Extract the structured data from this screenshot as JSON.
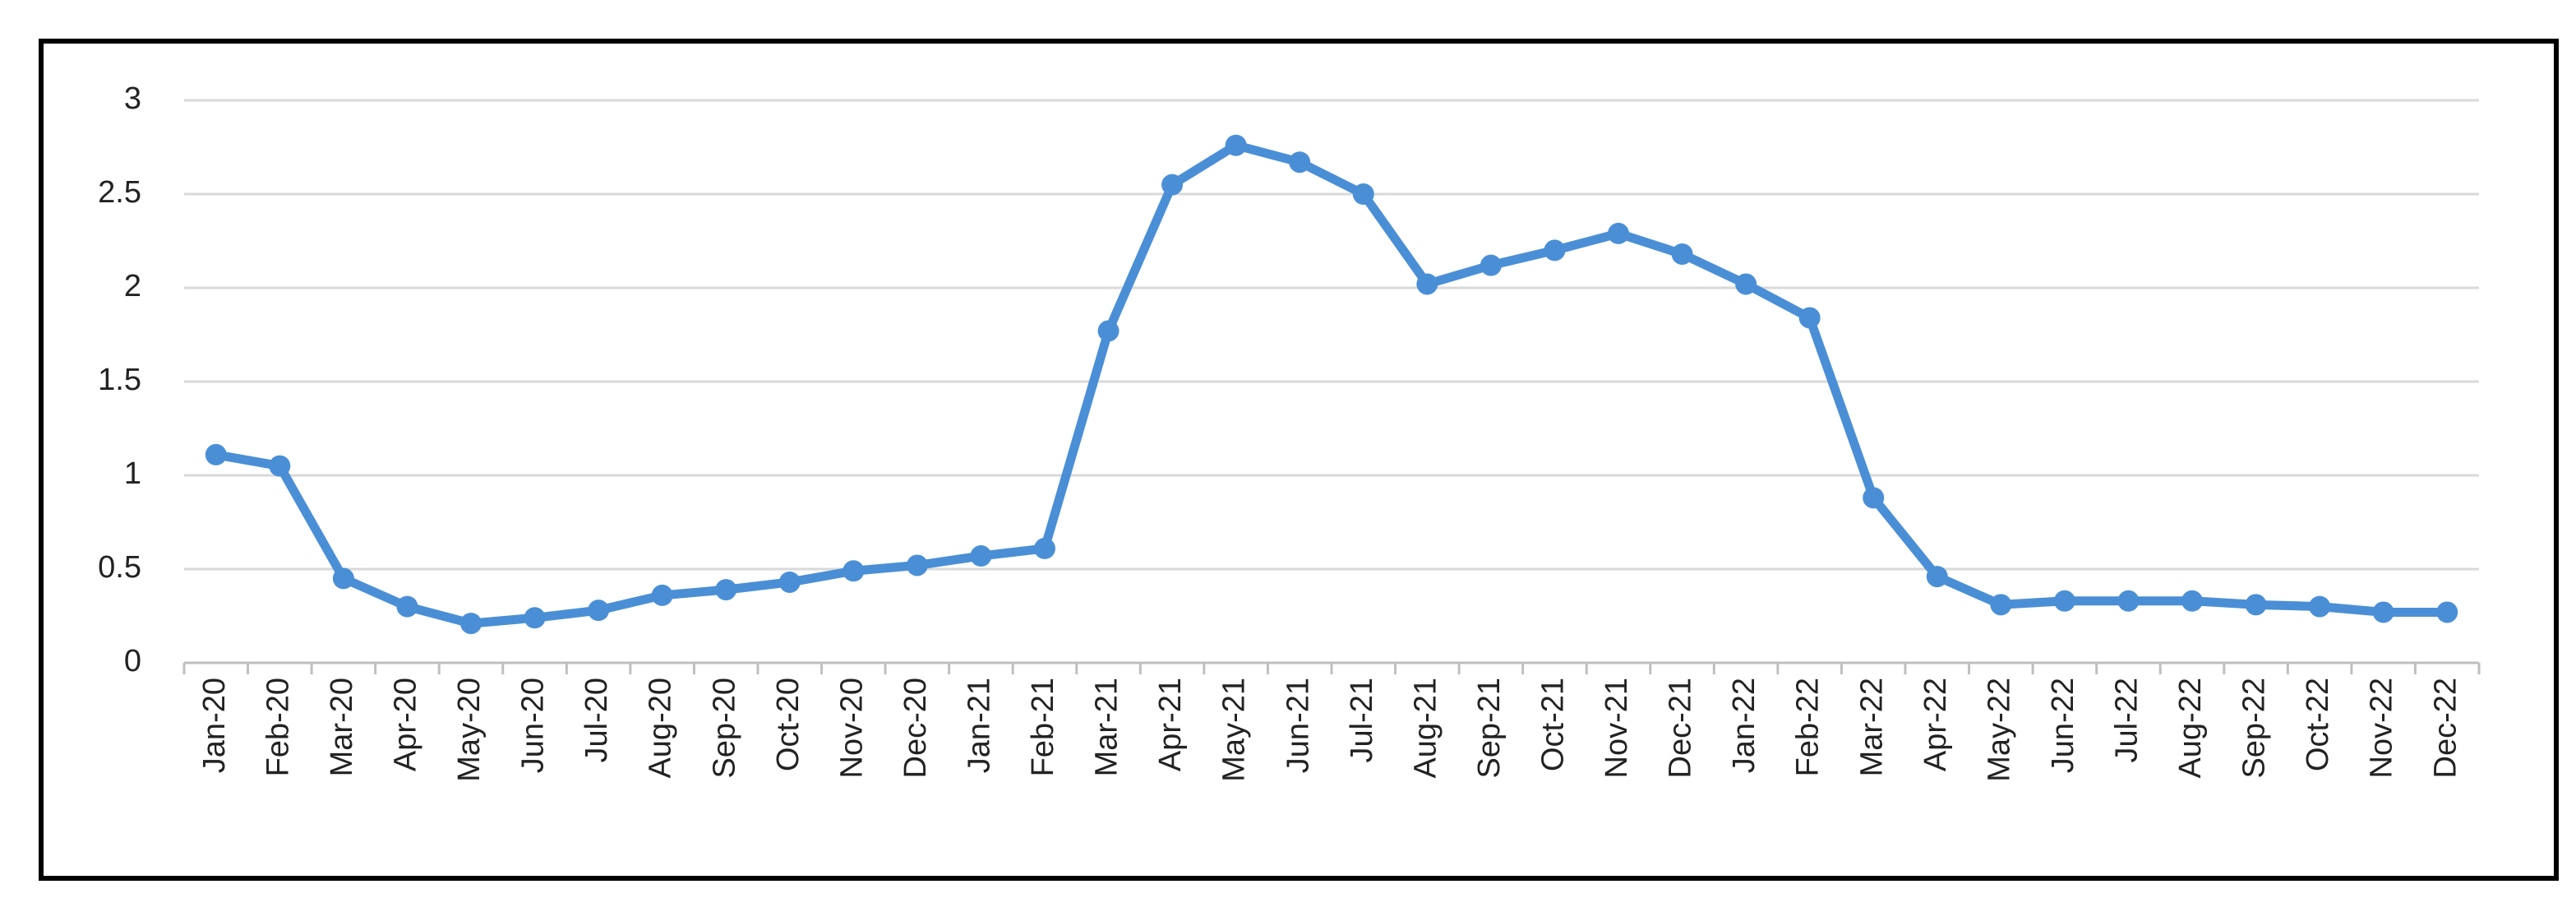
{
  "chart_data": {
    "type": "line",
    "categories": [
      "Jan-20",
      "Feb-20",
      "Mar-20",
      "Apr-20",
      "May-20",
      "Jun-20",
      "Jul-20",
      "Aug-20",
      "Sep-20",
      "Oct-20",
      "Nov-20",
      "Dec-20",
      "Jan-21",
      "Feb-21",
      "Mar-21",
      "Apr-21",
      "May-21",
      "Jun-21",
      "Jul-21",
      "Aug-21",
      "Sep-21",
      "Oct-21",
      "Nov-21",
      "Dec-21",
      "Jan-22",
      "Feb-22",
      "Mar-22",
      "Apr-22",
      "May-22",
      "Jun-22",
      "Jul-22",
      "Aug-22",
      "Sep-22",
      "Oct-22",
      "Nov-22",
      "Dec-22"
    ],
    "values": [
      1.11,
      1.05,
      0.45,
      0.3,
      0.21,
      0.24,
      0.28,
      0.36,
      0.39,
      0.43,
      0.49,
      0.52,
      0.57,
      0.61,
      1.77,
      2.55,
      2.76,
      2.67,
      2.5,
      2.02,
      2.12,
      2.2,
      2.29,
      2.18,
      2.02,
      1.84,
      0.88,
      0.46,
      0.31,
      0.33,
      0.33,
      0.33,
      0.31,
      0.3,
      0.27,
      0.27
    ],
    "color": "#4a8fd6",
    "ylim": [
      0,
      3
    ],
    "yticks": [
      0,
      0.5,
      1,
      1.5,
      2,
      2.5,
      3
    ],
    "grid": true
  }
}
